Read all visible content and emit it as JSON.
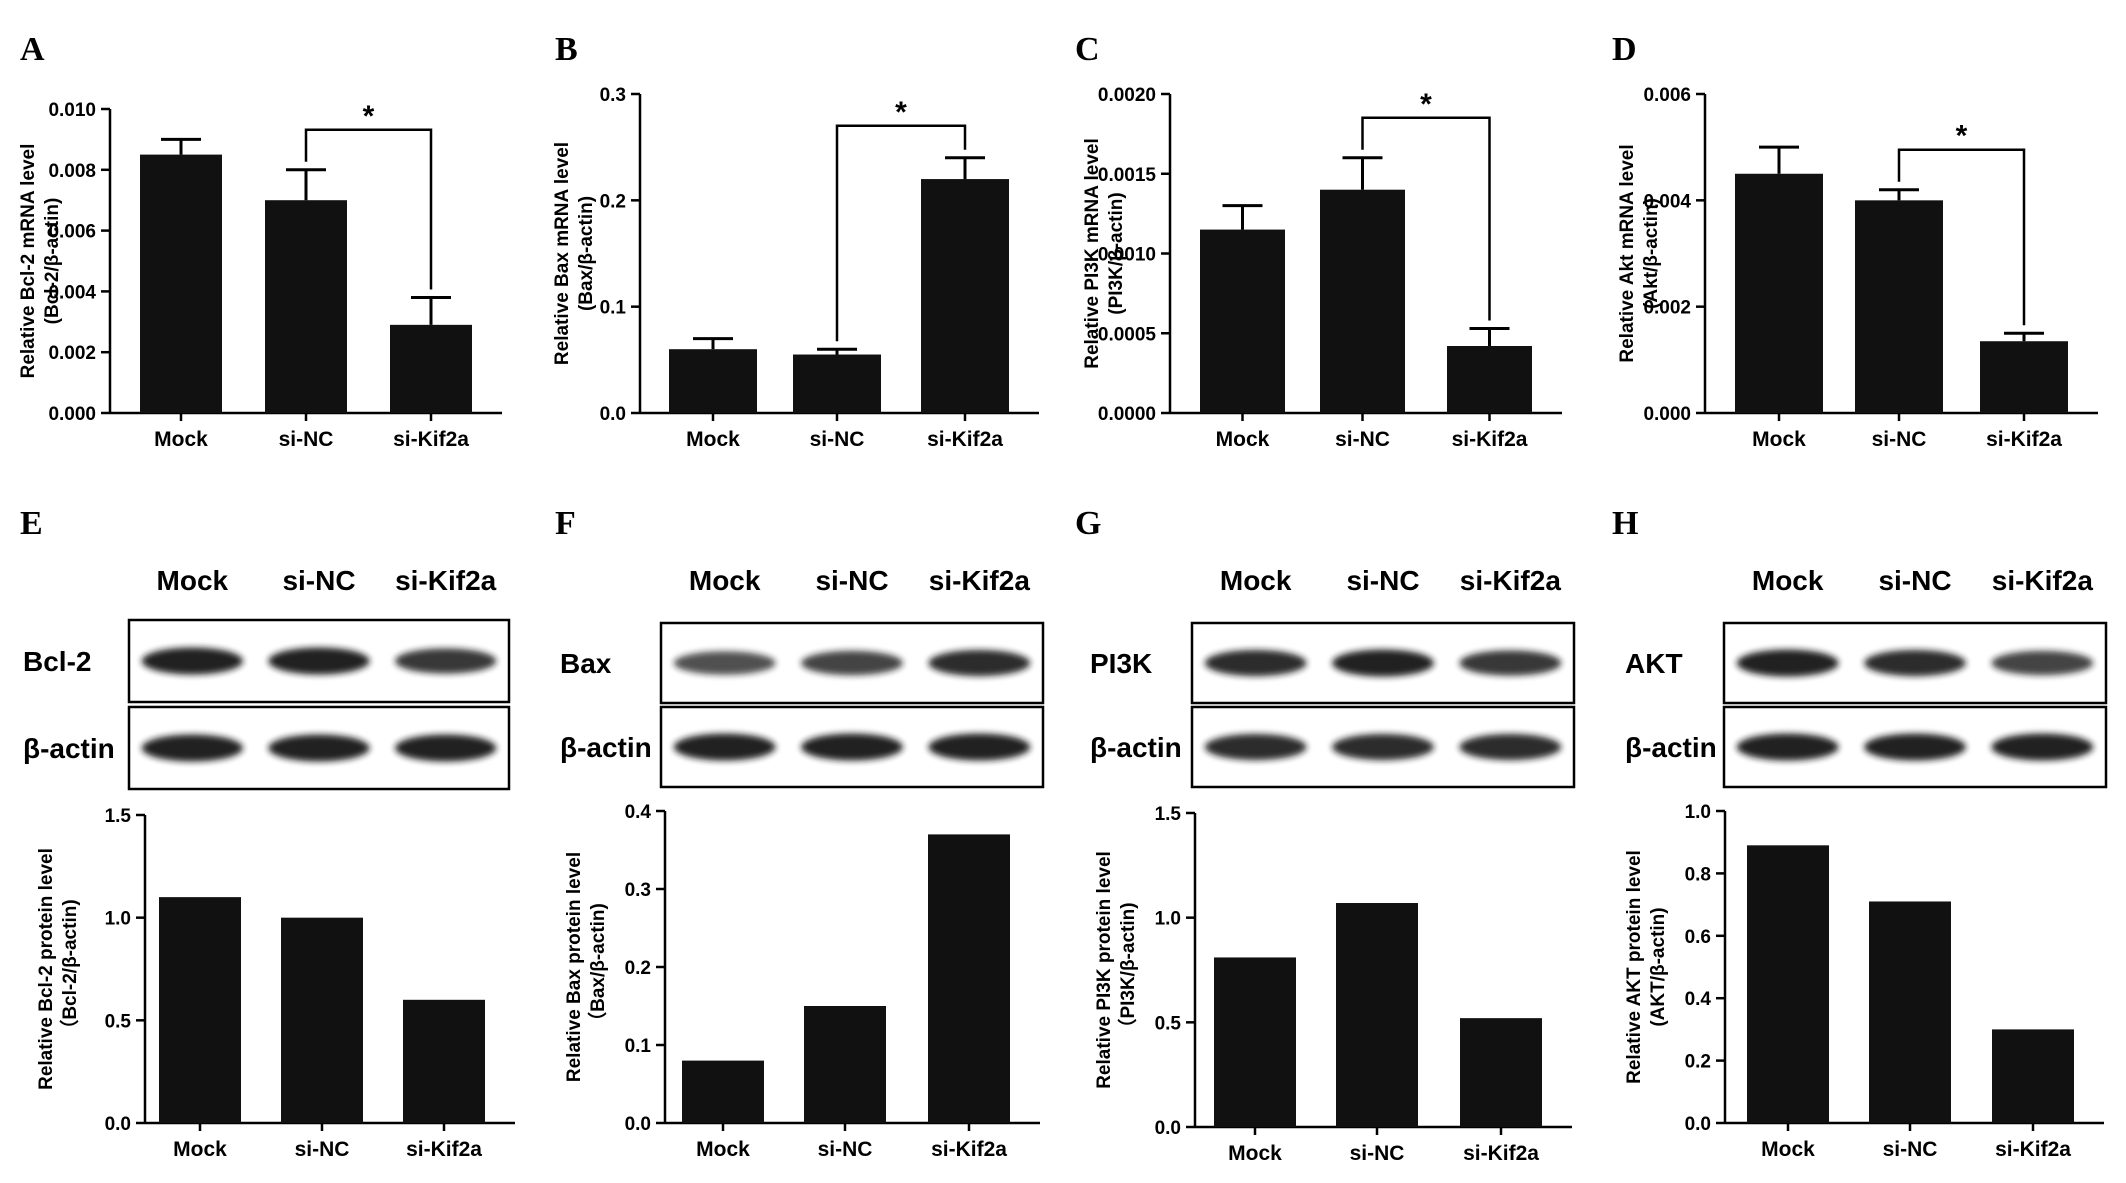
{
  "chart_data": [
    {
      "panel": "A",
      "type": "bar",
      "categories": [
        "Mock",
        "si-NC",
        "si-Kif2a"
      ],
      "values": [
        0.0085,
        0.007,
        0.0029
      ],
      "errors": [
        0.0005,
        0.001,
        0.0009
      ],
      "ylim": [
        0,
        0.01
      ],
      "yticks": [
        "0.000",
        "0.002",
        "0.004",
        "0.006",
        "0.008",
        "0.010"
      ],
      "ylabel": "Relative  Bcl-2 mRNA level",
      "ylabel2": "(Bcl-2/β-actin)",
      "significance": {
        "from": 1,
        "to": 2,
        "label": "*"
      }
    },
    {
      "panel": "B",
      "type": "bar",
      "categories": [
        "Mock",
        "si-NC",
        "si-Kif2a"
      ],
      "values": [
        0.06,
        0.055,
        0.22
      ],
      "errors": [
        0.01,
        0.005,
        0.02
      ],
      "ylim": [
        0,
        0.3
      ],
      "yticks": [
        "0.0",
        "0.1",
        "0.2",
        "0.3"
      ],
      "ylabel": "Relative  Bax mRNA level",
      "ylabel2": "(Bax/β-actin)",
      "significance": {
        "from": 1,
        "to": 2,
        "label": "*"
      }
    },
    {
      "panel": "C",
      "type": "bar",
      "categories": [
        "Mock",
        "si-NC",
        "si-Kif2a"
      ],
      "values": [
        0.00115,
        0.0014,
        0.00042
      ],
      "errors": [
        0.00015,
        0.0002,
        0.00011
      ],
      "ylim": [
        0,
        0.002
      ],
      "yticks": [
        "0.0000",
        "0.0005",
        "0.0010",
        "0.0015",
        "0.0020"
      ],
      "ylabel": "Relative  PI3K mRNA level",
      "ylabel2": "(PI3K/β-actin)",
      "significance": {
        "from": 1,
        "to": 2,
        "label": "*"
      }
    },
    {
      "panel": "D",
      "type": "bar",
      "categories": [
        "Mock",
        "si-NC",
        "si-Kif2a"
      ],
      "values": [
        0.0045,
        0.004,
        0.00135
      ],
      "errors": [
        0.0005,
        0.0002,
        0.00015
      ],
      "ylim": [
        0,
        0.006
      ],
      "yticks": [
        "0.000",
        "0.002",
        "0.004",
        "0.006"
      ],
      "ylabel": "Relative  Akt mRNA level",
      "ylabel2": "(Akt/β-actin)",
      "significance": {
        "from": 1,
        "to": 2,
        "label": "*"
      }
    },
    {
      "panel": "E",
      "type": "bar",
      "categories": [
        "Mock",
        "si-NC",
        "si-Kif2a"
      ],
      "values": [
        1.1,
        1.0,
        0.6
      ],
      "ylim": [
        0,
        1.5
      ],
      "yticks": [
        "0.0",
        "0.5",
        "1.0",
        "1.5"
      ],
      "ylabel": "Relative  Bcl-2 protein level",
      "ylabel2": "（Bcl-2/β-actin)"
    },
    {
      "panel": "F",
      "type": "bar",
      "categories": [
        "Mock",
        "si-NC",
        "si-Kif2a"
      ],
      "values": [
        0.08,
        0.15,
        0.37
      ],
      "ylim": [
        0,
        0.4
      ],
      "yticks": [
        "0.0",
        "0.1",
        "0.2",
        "0.3",
        "0.4"
      ],
      "ylabel": "Relative  Bax protein level",
      "ylabel2": "（Bax/β-actin)"
    },
    {
      "panel": "G",
      "type": "bar",
      "categories": [
        "Mock",
        "si-NC",
        "si-Kif2a"
      ],
      "values": [
        0.81,
        1.07,
        0.52
      ],
      "ylim": [
        0,
        1.5
      ],
      "yticks": [
        "0.0",
        "0.5",
        "1.0",
        "1.5"
      ],
      "ylabel": "Relative  PI3K protein level",
      "ylabel2": "（PI3K/β-actin)"
    },
    {
      "panel": "H",
      "type": "bar",
      "categories": [
        "Mock",
        "si-NC",
        "si-Kif2a"
      ],
      "values": [
        0.89,
        0.71,
        0.3
      ],
      "ylim": [
        0,
        1.0
      ],
      "yticks": [
        "0.0",
        "0.2",
        "0.4",
        "0.6",
        "0.8",
        "1.0"
      ],
      "ylabel": "Relative  AKT protein level",
      "ylabel2": "(AKT/β-actin)"
    }
  ],
  "blots": [
    {
      "panel": "E",
      "header": [
        "Mock",
        "si-NC",
        "si-Kif2a"
      ],
      "rows": [
        {
          "label": "Bcl-2",
          "intensity": [
            0.95,
            0.95,
            0.85
          ]
        },
        {
          "label": "β-actin",
          "intensity": [
            0.95,
            0.95,
            0.95
          ]
        }
      ]
    },
    {
      "panel": "F",
      "header": [
        "Mock",
        "si-NC",
        "si-Kif2a"
      ],
      "rows": [
        {
          "label": "Bax",
          "intensity": [
            0.75,
            0.8,
            0.9
          ]
        },
        {
          "label": "β-actin",
          "intensity": [
            0.95,
            0.95,
            0.95
          ]
        }
      ]
    },
    {
      "panel": "G",
      "header": [
        "Mock",
        "si-NC",
        "si-Kif2a"
      ],
      "rows": [
        {
          "label": "PI3K",
          "intensity": [
            0.9,
            0.95,
            0.85
          ]
        },
        {
          "label": "β-actin",
          "intensity": [
            0.9,
            0.9,
            0.9
          ]
        }
      ]
    },
    {
      "panel": "H",
      "header": [
        "Mock",
        "si-NC",
        "si-Kif2a"
      ],
      "rows": [
        {
          "label": "AKT",
          "intensity": [
            0.95,
            0.9,
            0.8
          ]
        },
        {
          "label": "β-actin",
          "intensity": [
            0.95,
            0.95,
            0.95
          ]
        }
      ]
    }
  ],
  "colors": {
    "bar": "#111111",
    "axis": "#000000",
    "band": "#141414"
  }
}
